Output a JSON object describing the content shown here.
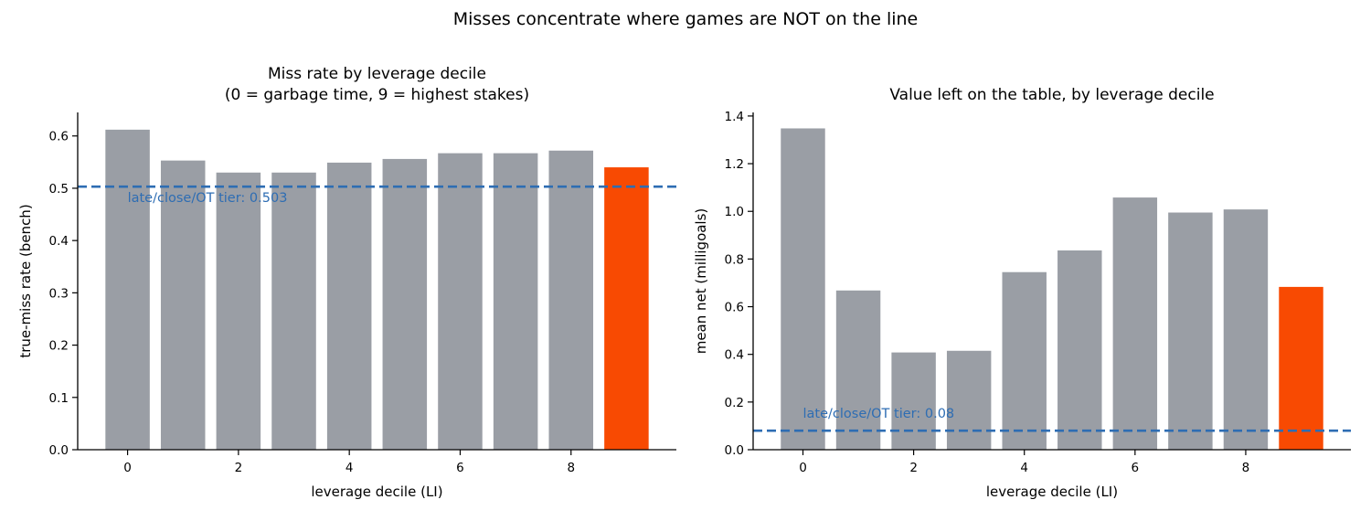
{
  "suptitle": "Misses concentrate where games are NOT on the line",
  "colors": {
    "bar": "#9a9ea5",
    "highlight": "#f84a02",
    "reference": "#2e6db3",
    "axis": "#000000"
  },
  "chart_data": [
    {
      "type": "bar",
      "title_line1": "Miss rate by leverage decile",
      "title_line2": "(0 = garbage time, 9 = highest stakes)",
      "xlabel": "leverage decile (LI)",
      "ylabel": "true-miss rate (bench)",
      "x": [
        0,
        1,
        2,
        3,
        4,
        5,
        6,
        7,
        8,
        9
      ],
      "values": [
        0.612,
        0.553,
        0.53,
        0.53,
        0.549,
        0.556,
        0.567,
        0.567,
        0.572,
        0.54
      ],
      "highlight_index": 9,
      "xlim": [
        -0.9,
        9.9
      ],
      "ylim": [
        0,
        0.645
      ],
      "xticks": [
        0,
        2,
        4,
        6,
        8
      ],
      "yticks": [
        0.0,
        0.1,
        0.2,
        0.3,
        0.4,
        0.5,
        0.6
      ],
      "ytick_labels": [
        "0.0",
        "0.1",
        "0.2",
        "0.3",
        "0.4",
        "0.5",
        "0.6"
      ],
      "reference_line": {
        "value": 0.503,
        "label": "late/close/OT tier: 0.503",
        "label_x": 0
      },
      "grid": false
    },
    {
      "type": "bar",
      "title_line1": "Value left on the table, by leverage decile",
      "title_line2": "",
      "xlabel": "leverage decile (LI)",
      "ylabel": "mean net (milligoals)",
      "x": [
        0,
        1,
        2,
        3,
        4,
        5,
        6,
        7,
        8,
        9
      ],
      "values": [
        1.348,
        0.668,
        0.408,
        0.415,
        0.745,
        0.836,
        1.058,
        0.995,
        1.008,
        0.683
      ],
      "highlight_index": 9,
      "xlim": [
        -0.9,
        9.9
      ],
      "ylim": [
        0,
        1.415
      ],
      "xticks": [
        0,
        2,
        4,
        6,
        8
      ],
      "yticks": [
        0.0,
        0.2,
        0.4,
        0.6,
        0.8,
        1.0,
        1.2,
        1.4
      ],
      "ytick_labels": [
        "0.0",
        "0.2",
        "0.4",
        "0.6",
        "0.8",
        "1.0",
        "1.2",
        "1.4"
      ],
      "reference_line": {
        "value": 0.08,
        "label": "late/close/OT tier: 0.08",
        "label_x": 0
      },
      "grid": false
    }
  ]
}
